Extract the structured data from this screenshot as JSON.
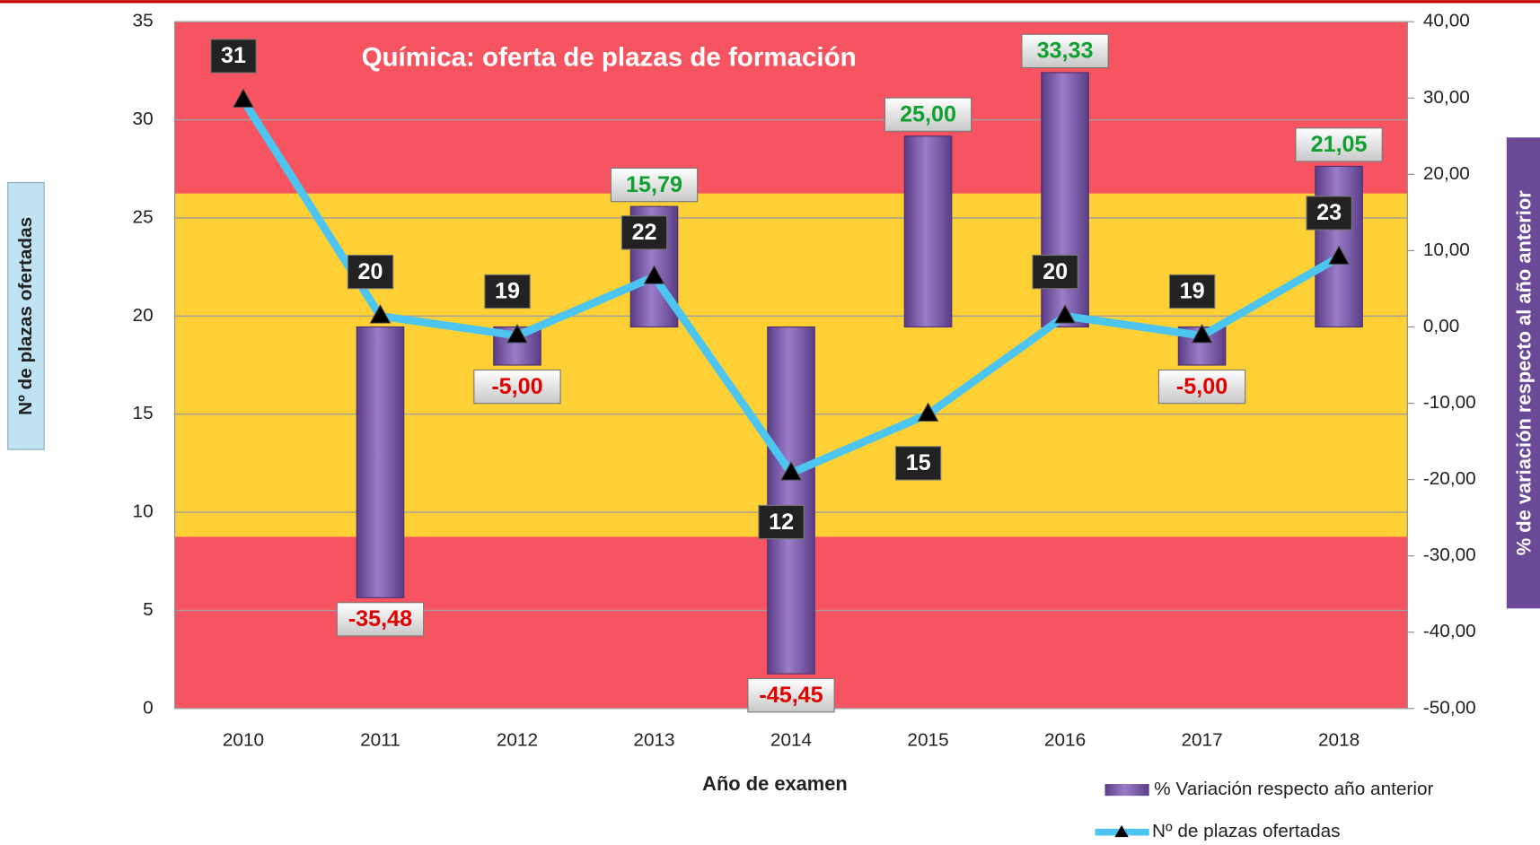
{
  "chart_data": {
    "type": "bar",
    "title": "Química: oferta de plazas de formación",
    "x_label": "Año de examen",
    "y_label": "Nº de plazas ofertadas",
    "y2_label": "% de variación respecto al año anterior",
    "categories": [
      "2010",
      "2011",
      "2012",
      "2013",
      "2014",
      "2015",
      "2016",
      "2017",
      "2018"
    ],
    "ylim": [
      0,
      35
    ],
    "yticks": [
      0,
      5,
      10,
      15,
      20,
      25,
      30,
      35
    ],
    "y2lim": [
      -50,
      40
    ],
    "y2ticks": [
      {
        "value": -50,
        "label": "-50,00"
      },
      {
        "value": -40,
        "label": "-40,00"
      },
      {
        "value": -30,
        "label": "-30,00"
      },
      {
        "value": -20,
        "label": "-20,00"
      },
      {
        "value": -10,
        "label": "-10,00"
      },
      {
        "value": 0,
        "label": "0,00"
      },
      {
        "value": 10,
        "label": "10,00"
      },
      {
        "value": 20,
        "label": "20,00"
      },
      {
        "value": 30,
        "label": "30,00"
      },
      {
        "value": 40,
        "label": "40,00"
      }
    ],
    "series": [
      {
        "name": "% Variación respecto año anterior",
        "type": "bar",
        "axis": "y2",
        "color": "#7b5aa6",
        "values": [
          null,
          -35.48,
          -5.0,
          15.79,
          -45.45,
          25.0,
          33.33,
          -5.0,
          21.05
        ],
        "value_labels": [
          null,
          "-35,48",
          "-5,00",
          "15,79",
          "-45,45",
          "25,00",
          "33,33",
          "-5,00",
          "21,05"
        ]
      },
      {
        "name": "Nº de plazas ofertadas",
        "type": "line",
        "color": "#4cc6f0",
        "values": [
          31,
          20,
          19,
          22,
          12,
          15,
          20,
          19,
          23
        ]
      }
    ],
    "grid": true
  }
}
